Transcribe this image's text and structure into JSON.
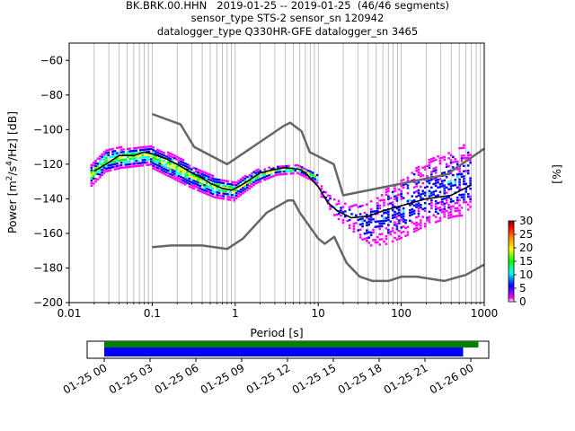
{
  "title_lines": [
    "BK.BRK.00.HHN   2019-01-25 -- 2019-01-25  (46/46 segments)",
    "sensor_type STS-2 sensor_sn 120942",
    "datalogger_type Q330HR-GFE datalogger_sn 3465"
  ],
  "chart_data": {
    "type": "heatmap",
    "xlabel": "Period [s]",
    "ylabel_parts": [
      "Power [m",
      "2",
      "/s",
      "4",
      "/Hz] [dB]"
    ],
    "xscale": "log",
    "xlim": [
      0.01,
      1000
    ],
    "ylim": [
      -200,
      -50
    ],
    "xtick_labels": [
      {
        "v": 0.01,
        "label": "0.01"
      },
      {
        "v": 0.1,
        "label": "0.1"
      },
      {
        "v": 1,
        "label": "1"
      },
      {
        "v": 10,
        "label": "10"
      },
      {
        "v": 100,
        "label": "100"
      },
      {
        "v": 1000,
        "label": "1000"
      }
    ],
    "ytick_labels": [
      {
        "v": -60,
        "label": "−60"
      },
      {
        "v": -80,
        "label": "−80"
      },
      {
        "v": -100,
        "label": "−100"
      },
      {
        "v": -120,
        "label": "−120"
      },
      {
        "v": -140,
        "label": "−140"
      },
      {
        "v": -160,
        "label": "−160"
      },
      {
        "v": -180,
        "label": "−180"
      },
      {
        "v": -200,
        "label": "−200"
      }
    ],
    "grid": "vertical minor+major lines",
    "noise_models": [
      {
        "name": "upper",
        "points": [
          [
            0.1,
            -91
          ],
          [
            0.22,
            -97
          ],
          [
            0.32,
            -110
          ],
          [
            0.8,
            -120
          ],
          [
            3.8,
            -98
          ],
          [
            4.6,
            -96
          ],
          [
            6.3,
            -101
          ],
          [
            7.9,
            -113
          ],
          [
            15.4,
            -120
          ],
          [
            20,
            -138
          ],
          [
            354,
            -126
          ],
          [
            1000,
            -111
          ]
        ]
      },
      {
        "name": "lower",
        "points": [
          [
            0.1,
            -168
          ],
          [
            0.17,
            -167
          ],
          [
            0.4,
            -167
          ],
          [
            0.8,
            -169
          ],
          [
            1.24,
            -163
          ],
          [
            2.4,
            -148
          ],
          [
            4.3,
            -141
          ],
          [
            5,
            -141
          ],
          [
            6,
            -148
          ],
          [
            10,
            -163
          ],
          [
            12,
            -166
          ],
          [
            15.6,
            -162
          ],
          [
            21.9,
            -177
          ],
          [
            31.6,
            -185
          ],
          [
            45,
            -187.5
          ],
          [
            70,
            -187.5
          ],
          [
            101,
            -185
          ],
          [
            154,
            -185
          ],
          [
            328,
            -187.5
          ],
          [
            600,
            -184
          ],
          [
            1000,
            -178
          ]
        ]
      }
    ],
    "mean_curve": [
      [
        0.02,
        -124
      ],
      [
        0.03,
        -119
      ],
      [
        0.04,
        -115
      ],
      [
        0.06,
        -115
      ],
      [
        0.08,
        -113
      ],
      [
        0.1,
        -114
      ],
      [
        0.15,
        -117
      ],
      [
        0.2,
        -120
      ],
      [
        0.3,
        -125
      ],
      [
        0.4,
        -128
      ],
      [
        0.5,
        -131
      ],
      [
        0.7,
        -134
      ],
      [
        0.9,
        -135
      ],
      [
        1.1,
        -133
      ],
      [
        1.5,
        -129
      ],
      [
        2,
        -125
      ],
      [
        3,
        -123
      ],
      [
        4,
        -122
      ],
      [
        6,
        -123
      ],
      [
        7,
        -125
      ],
      [
        10,
        -133
      ],
      [
        13,
        -142
      ],
      [
        17,
        -147
      ],
      [
        25,
        -151
      ],
      [
        40,
        -150
      ],
      [
        60,
        -147
      ],
      [
        100,
        -144
      ],
      [
        200,
        -140
      ],
      [
        400,
        -138
      ],
      [
        700,
        -132
      ]
    ],
    "psd_bands": [
      {
        "p0": 0.018,
        "p1": 0.1,
        "lo": [
          -133,
          -124,
          -122,
          -121,
          -120
        ],
        "hi": [
          -121,
          -112,
          -110,
          -110,
          -109
        ]
      },
      {
        "p0": 0.1,
        "p1": 1,
        "lo": [
          -122,
          -128,
          -134,
          -139,
          -141
        ],
        "hi": [
          -110,
          -114,
          -121,
          -127,
          -130
        ]
      },
      {
        "p0": 1,
        "p1": 10,
        "lo": [
          -140,
          -131,
          -126,
          -125,
          -131
        ],
        "hi": [
          -130,
          -123,
          -121,
          -120,
          -125
        ]
      },
      {
        "p0": 10,
        "p1": 700,
        "lo": [
          -136,
          -150,
          -158,
          -167,
          -166,
          -162,
          -157,
          -153,
          -150,
          -149
        ],
        "hi": [
          -130,
          -140,
          -143,
          -142,
          -134,
          -127,
          -120,
          -115,
          -111,
          -107
        ]
      }
    ],
    "colorbar": {
      "label": "[%]",
      "min": 0,
      "max": 30,
      "ticks": [
        "0",
        "5",
        "10",
        "15",
        "20",
        "25",
        "30"
      ],
      "colors": [
        "#ffffff",
        "#ff00ff",
        "#0000ff",
        "#00ffff",
        "#00ff00",
        "#ffff00",
        "#ff8000",
        "#ff0000",
        "#800000"
      ]
    },
    "timeline": {
      "tick_labels": [
        "01-25 00",
        "01-25 03",
        "01-25 06",
        "01-25 09",
        "01-25 12",
        "01-25 15",
        "01-25 18",
        "01-25 21",
        "01-26 00"
      ],
      "bars": [
        {
          "name": "data",
          "color": "#008000",
          "start_h": 0,
          "end_h": 24.5
        },
        {
          "name": "used",
          "color": "#0000ff",
          "start_h": 0,
          "end_h": 23.5
        }
      ]
    }
  }
}
